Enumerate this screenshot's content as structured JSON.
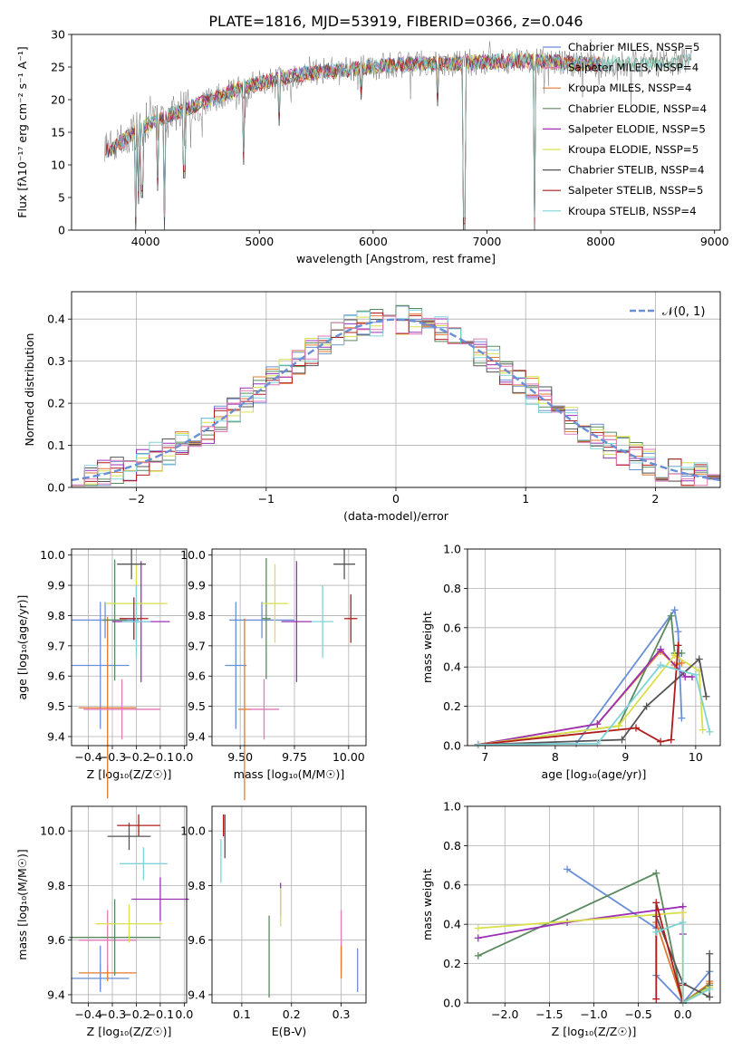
{
  "figure": {
    "title": "PLATE=1816, MJD=53919, FIBERID=0366, z=0.046"
  },
  "colors": {
    "blue": "#6a8fd6",
    "orange": "#e07a30",
    "green": "#5a8a5e",
    "purple": "#9b30b5",
    "yellow": "#d9e04a",
    "gray": "#555555",
    "red": "#b01c1c",
    "cyan": "#7fd3d6",
    "pink": "#e07ab8"
  },
  "chart_data": [
    {
      "id": "spectrum",
      "type": "line",
      "xlabel": "wavelength [Angstrom, rest frame]",
      "ylabel": "Flux [fλ10⁻¹⁷ erg cm⁻² s⁻¹ A⁻¹]",
      "xlim": [
        3350,
        9050
      ],
      "ylim": [
        0,
        30
      ],
      "xticks": [
        4000,
        5000,
        6000,
        7000,
        8000,
        9000
      ],
      "yticks": [
        0,
        5,
        10,
        15,
        20,
        25,
        30
      ],
      "legend_position": "upper-right",
      "continuum": [
        [
          3650,
          12
        ],
        [
          3750,
          13
        ],
        [
          3900,
          15
        ],
        [
          4000,
          16
        ],
        [
          4200,
          17.5
        ],
        [
          4500,
          19.5
        ],
        [
          4800,
          21.5
        ],
        [
          5100,
          23
        ],
        [
          5400,
          24
        ],
        [
          5700,
          24.5
        ],
        [
          6000,
          25
        ],
        [
          6300,
          25.5
        ],
        [
          6600,
          25.5
        ],
        [
          7000,
          25.8
        ],
        [
          7400,
          26
        ],
        [
          7800,
          25.5
        ],
        [
          8200,
          25.5
        ],
        [
          8500,
          25.5
        ],
        [
          8800,
          26
        ]
      ],
      "dips": [
        [
          3934,
          4
        ],
        [
          3969,
          5
        ],
        [
          4102,
          6
        ],
        [
          4340,
          8
        ],
        [
          4861,
          10
        ],
        [
          5175,
          16
        ],
        [
          5890,
          20
        ],
        [
          6563,
          19
        ],
        [
          6800,
          0
        ],
        [
          7420,
          0
        ],
        [
          3910,
          0
        ],
        [
          4170,
          0
        ]
      ],
      "series": [
        {
          "name": "Chabrier MILES, N_SSP=5",
          "color": "blue"
        },
        {
          "name": "Salpeter MILES, N_SSP=4",
          "color": "pink"
        },
        {
          "name": "Kroupa MILES, N_SSP=4",
          "color": "orange"
        },
        {
          "name": "Chabrier ELODIE, N_SSP=4",
          "color": "green"
        },
        {
          "name": "Salpeter ELODIE, N_SSP=5",
          "color": "purple"
        },
        {
          "name": "Kroupa ELODIE, N_SSP=5",
          "color": "yellow"
        },
        {
          "name": "Chabrier STELIB, N_SSP=4",
          "color": "gray"
        },
        {
          "name": "Salpeter STELIB, N_SSP=5",
          "color": "red"
        },
        {
          "name": "Kroupa STELIB, N_SSP=4",
          "color": "cyan"
        }
      ]
    },
    {
      "id": "residual-hist",
      "type": "histogram",
      "xlabel": "(data-model)/error",
      "ylabel": "Normed distribution",
      "xlim": [
        -2.5,
        2.5
      ],
      "ylim": [
        0,
        0.465
      ],
      "xticks": [
        -2,
        -1,
        0,
        1,
        2
      ],
      "yticks": [
        0.0,
        0.1,
        0.2,
        0.3,
        0.4
      ],
      "bin_width": 0.1,
      "legend": "𝒩(0, 1)",
      "legend_position": "upper-right",
      "reference_curve": {
        "type": "gaussian",
        "mean": 0,
        "sigma": 1,
        "style": "dashed",
        "color": "blue"
      },
      "series_colors": [
        "blue",
        "orange",
        "green",
        "purple",
        "yellow",
        "gray",
        "red",
        "cyan",
        "pink"
      ]
    },
    {
      "id": "age-vs-z",
      "type": "errorbar",
      "xlabel": "Z [log₁₀(Z/Z☉)]",
      "ylabel": "age  [log₁₀(age/yr)]",
      "xlim": [
        -0.47,
        0.01
      ],
      "ylim": [
        9.37,
        10.02
      ],
      "xticks": [
        -0.4,
        -0.3,
        -0.2,
        -0.1,
        0.0
      ],
      "yticks": [
        9.4,
        9.5,
        9.6,
        9.7,
        9.8,
        9.9,
        10.0
      ],
      "points": [
        {
          "color": "blue",
          "x": -0.35,
          "xerr": 0.12,
          "y": 9.635,
          "yerr": 0.21
        },
        {
          "color": "blue",
          "x": -0.33,
          "xerr": 0.14,
          "y": 9.785,
          "yerr": 0.06
        },
        {
          "color": "orange",
          "x": -0.32,
          "xerr": 0.12,
          "y": 9.495,
          "yerr": 0.3
        },
        {
          "color": "pink",
          "x": -0.26,
          "xerr": 0.16,
          "y": 9.49,
          "yerr": 0.1
        },
        {
          "color": "green",
          "x": -0.29,
          "xerr": 0.05,
          "y": 9.785,
          "yerr": 0.2
        },
        {
          "color": "purple",
          "x": -0.18,
          "xerr": 0.12,
          "y": 9.78,
          "yerr": 0.2
        },
        {
          "color": "yellow",
          "x": -0.2,
          "xerr": 0.13,
          "y": 9.84,
          "yerr": 0.13
        },
        {
          "color": "gray",
          "x": -0.22,
          "xerr": 0.06,
          "y": 9.97,
          "yerr": 0.05
        },
        {
          "color": "red",
          "x": -0.21,
          "xerr": 0.06,
          "y": 9.79,
          "yerr": 0.07
        },
        {
          "color": "cyan",
          "x": -0.2,
          "xerr": 0.06,
          "y": 9.78,
          "yerr": 0.12
        }
      ]
    },
    {
      "id": "age-vs-mass",
      "type": "errorbar",
      "xlabel": "mass [log₁₀(M/M☉)]",
      "ylabel": "",
      "xlim": [
        9.37,
        10.08
      ],
      "ylim": [
        9.37,
        10.02
      ],
      "xticks": [
        9.5,
        9.75,
        10.0
      ],
      "yticks": [
        9.4,
        9.5,
        9.6,
        9.7,
        9.8,
        9.9,
        10.0
      ],
      "points": [
        {
          "color": "blue",
          "x": 9.48,
          "xerr": 0.05,
          "y": 9.635,
          "yerr": 0.21
        },
        {
          "color": "blue",
          "x": 9.6,
          "xerr": 0.15,
          "y": 9.785,
          "yerr": 0.06
        },
        {
          "color": "orange",
          "x": 9.52,
          "xerr": 0.03,
          "y": 9.49,
          "yerr": 0.3
        },
        {
          "color": "pink",
          "x": 9.61,
          "xerr": 0.07,
          "y": 9.49,
          "yerr": 0.1
        },
        {
          "color": "green",
          "x": 9.62,
          "xerr": 0.02,
          "y": 9.79,
          "yerr": 0.2
        },
        {
          "color": "purple",
          "x": 9.76,
          "xerr": 0.07,
          "y": 9.78,
          "yerr": 0.2
        },
        {
          "color": "yellow",
          "x": 9.66,
          "xerr": 0.06,
          "y": 9.84,
          "yerr": 0.13
        },
        {
          "color": "gray",
          "x": 9.98,
          "xerr": 0.05,
          "y": 9.97,
          "yerr": 0.05
        },
        {
          "color": "red",
          "x": 10.01,
          "xerr": 0.03,
          "y": 9.79,
          "yerr": 0.08
        },
        {
          "color": "cyan",
          "x": 9.88,
          "xerr": 0.05,
          "y": 9.78,
          "yerr": 0.12
        }
      ]
    },
    {
      "id": "weight-vs-age",
      "type": "line",
      "xlabel": "age  [log₁₀(age/yr)]",
      "ylabel": "mass weight",
      "xlim": [
        6.75,
        10.35
      ],
      "ylim": [
        0,
        1
      ],
      "xticks": [
        7,
        8,
        9,
        10
      ],
      "yticks": [
        0.0,
        0.2,
        0.4,
        0.6,
        0.8,
        1.0
      ],
      "series": [
        {
          "color": "blue",
          "x": [
            6.9,
            8.3,
            9.7,
            9.75,
            9.8
          ],
          "y": [
            0.005,
            0.01,
            0.69,
            0.58,
            0.14
          ]
        },
        {
          "color": "orange",
          "x": [
            6.9,
            8.6,
            9.5,
            9.7,
            9.8
          ],
          "y": [
            0.005,
            0.11,
            0.48,
            0.41,
            0.42
          ]
        },
        {
          "color": "green",
          "x": [
            6.9,
            8.9,
            9.65,
            9.7,
            9.8
          ],
          "y": [
            0.005,
            0.1,
            0.66,
            0.47,
            0.47
          ]
        },
        {
          "color": "purple",
          "x": [
            6.9,
            8.6,
            9.5,
            9.85,
            9.95
          ],
          "y": [
            0.005,
            0.11,
            0.49,
            0.35,
            0.35
          ]
        },
        {
          "color": "yellow",
          "x": [
            6.9,
            8.9,
            9.7,
            10.05,
            10.1
          ],
          "y": [
            0.005,
            0.1,
            0.46,
            0.38,
            0.08
          ]
        },
        {
          "color": "gray",
          "x": [
            6.9,
            8.95,
            9.3,
            10.05,
            10.15
          ],
          "y": [
            0.005,
            0.03,
            0.2,
            0.44,
            0.25
          ]
        },
        {
          "color": "red",
          "x": [
            6.9,
            9.15,
            9.5,
            9.65,
            9.75
          ],
          "y": [
            0.005,
            0.09,
            0.02,
            0.03,
            0.51
          ]
        },
        {
          "color": "cyan",
          "x": [
            6.9,
            8.6,
            9.5,
            10.0,
            10.2
          ],
          "y": [
            0.005,
            0.01,
            0.41,
            0.36,
            0.07
          ]
        }
      ]
    },
    {
      "id": "mass-vs-z",
      "type": "errorbar",
      "xlabel": "Z [log₁₀(Z/Z☉)]",
      "ylabel": "mass [log₁₀(M/M☉)]",
      "xlim": [
        -0.47,
        0.01
      ],
      "ylim": [
        9.37,
        10.09
      ],
      "xticks": [
        -0.4,
        -0.3,
        -0.2,
        -0.1,
        0.0
      ],
      "yticks": [
        9.4,
        9.6,
        9.8,
        10.0
      ],
      "points": [
        {
          "color": "blue",
          "x": -0.35,
          "xerr": 0.12,
          "y": 9.46,
          "yerr": 0.05
        },
        {
          "color": "blue",
          "x": -0.35,
          "xerr": 0.0,
          "y": 9.5,
          "yerr": 0.08
        },
        {
          "color": "orange",
          "x": -0.32,
          "xerr": 0.12,
          "y": 9.48,
          "yerr": 0.03
        },
        {
          "color": "pink",
          "x": -0.32,
          "xerr": 0.12,
          "y": 9.6,
          "yerr": 0.11
        },
        {
          "color": "green",
          "x": -0.29,
          "xerr": 0.19,
          "y": 9.61,
          "yerr": 0.14
        },
        {
          "color": "purple",
          "x": -0.1,
          "xerr": 0.12,
          "y": 9.75,
          "yerr": 0.08
        },
        {
          "color": "yellow",
          "x": -0.23,
          "xerr": 0.14,
          "y": 9.66,
          "yerr": 0.07
        },
        {
          "color": "gray",
          "x": -0.23,
          "xerr": 0.09,
          "y": 9.98,
          "yerr": 0.05
        },
        {
          "color": "red",
          "x": -0.19,
          "xerr": 0.09,
          "y": 10.02,
          "yerr": 0.04
        },
        {
          "color": "cyan",
          "x": -0.17,
          "xerr": 0.1,
          "y": 9.88,
          "yerr": 0.06
        }
      ]
    },
    {
      "id": "mass-vs-ebv",
      "type": "errorbar",
      "xlabel": "E(B-V)",
      "ylabel": "",
      "xlim": [
        0.04,
        0.35
      ],
      "ylim": [
        9.37,
        10.09
      ],
      "xticks": [
        0.1,
        0.2,
        0.3
      ],
      "yticks": [
        9.4,
        9.6,
        9.8,
        10.0
      ],
      "points": [
        {
          "color": "cyan",
          "x": 0.058,
          "xerr": 0,
          "y": 9.89,
          "yerr": 0.08
        },
        {
          "color": "gray",
          "x": 0.066,
          "xerr": 0,
          "y": 9.98,
          "yerr": 0.08
        },
        {
          "color": "red",
          "x": 0.063,
          "xerr": 0,
          "y": 10.02,
          "yerr": 0.04
        },
        {
          "color": "green",
          "x": 0.155,
          "xerr": 0,
          "y": 9.54,
          "yerr": 0.15
        },
        {
          "color": "purple",
          "x": 0.178,
          "xerr": 0,
          "y": 9.75,
          "yerr": 0.06
        },
        {
          "color": "yellow",
          "x": 0.178,
          "xerr": 0,
          "y": 9.72,
          "yerr": 0.07
        },
        {
          "color": "pink",
          "x": 0.3,
          "xerr": 0,
          "y": 9.6,
          "yerr": 0.11
        },
        {
          "color": "orange",
          "x": 0.3,
          "xerr": 0,
          "y": 9.52,
          "yerr": 0.06
        },
        {
          "color": "blue",
          "x": 0.333,
          "xerr": 0,
          "y": 9.49,
          "yerr": 0.08
        }
      ]
    },
    {
      "id": "weight-vs-z",
      "type": "line",
      "xlabel": "Z [log₁₀(Z/Z☉)]",
      "ylabel": "mass weight",
      "xlim": [
        -2.42,
        0.42
      ],
      "ylim": [
        0,
        1
      ],
      "xticks": [
        -2.0,
        -1.5,
        -1.0,
        -0.5,
        0.0
      ],
      "yticks": [
        0.0,
        0.2,
        0.4,
        0.6,
        0.8,
        1.0
      ],
      "series": [
        {
          "color": "blue",
          "x": [
            -1.3,
            -0.3,
            -0.3,
            0.0,
            0.3
          ],
          "y": [
            0.68,
            0.38,
            0.14,
            0.0,
            0.16
          ]
        },
        {
          "color": "orange",
          "x": [
            -0.3,
            0.0,
            0.3,
            0.3
          ],
          "y": [
            0.41,
            0.0,
            0.1,
            0.11
          ]
        },
        {
          "color": "green",
          "x": [
            -2.3,
            -0.3,
            0.0,
            0.3
          ],
          "y": [
            0.24,
            0.66,
            0.0,
            0.09
          ]
        },
        {
          "color": "purple",
          "x": [
            -2.3,
            -1.3,
            0.0,
            0.0
          ],
          "y": [
            0.33,
            0.41,
            0.49,
            0.35
          ]
        },
        {
          "color": "yellow",
          "x": [
            -2.3,
            0.0,
            0.0,
            0.3
          ],
          "y": [
            0.38,
            0.46,
            0.0,
            0.08
          ]
        },
        {
          "color": "gray",
          "x": [
            -0.3,
            0.0,
            0.3,
            0.3
          ],
          "y": [
            0.44,
            0.1,
            0.03,
            0.25
          ]
        },
        {
          "color": "red",
          "x": [
            -0.3,
            -0.3,
            0.0,
            0.0
          ],
          "y": [
            0.02,
            0.51,
            0.0,
            0.09
          ]
        },
        {
          "color": "cyan",
          "x": [
            -0.3,
            0.0,
            0.0,
            0.3
          ],
          "y": [
            0.36,
            0.41,
            0.0,
            0.07
          ]
        }
      ]
    }
  ]
}
